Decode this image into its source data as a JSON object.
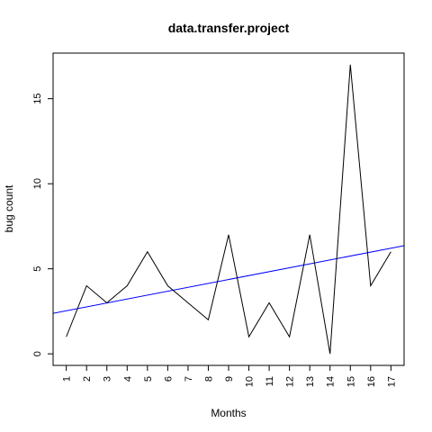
{
  "chart_data": {
    "type": "line",
    "title": "data.transfer.project",
    "xlabel": "Months",
    "ylabel": "bug count",
    "x": [
      1,
      2,
      3,
      4,
      5,
      6,
      7,
      8,
      9,
      10,
      11,
      12,
      13,
      14,
      15,
      16,
      17
    ],
    "xlim": [
      0.35,
      17.65
    ],
    "ylim": [
      -0.68,
      17.68
    ],
    "yticks": [
      0,
      5,
      10,
      15
    ],
    "grid": false,
    "series": [
      {
        "values": [
          1,
          4,
          3,
          4,
          6,
          4,
          3,
          2,
          7,
          1,
          3,
          1,
          7,
          0,
          17,
          4,
          6
        ],
        "color": "#000000"
      }
    ],
    "trend_line": {
      "intercept": 2.3,
      "slope": 0.23,
      "color": "#0000ff"
    }
  }
}
